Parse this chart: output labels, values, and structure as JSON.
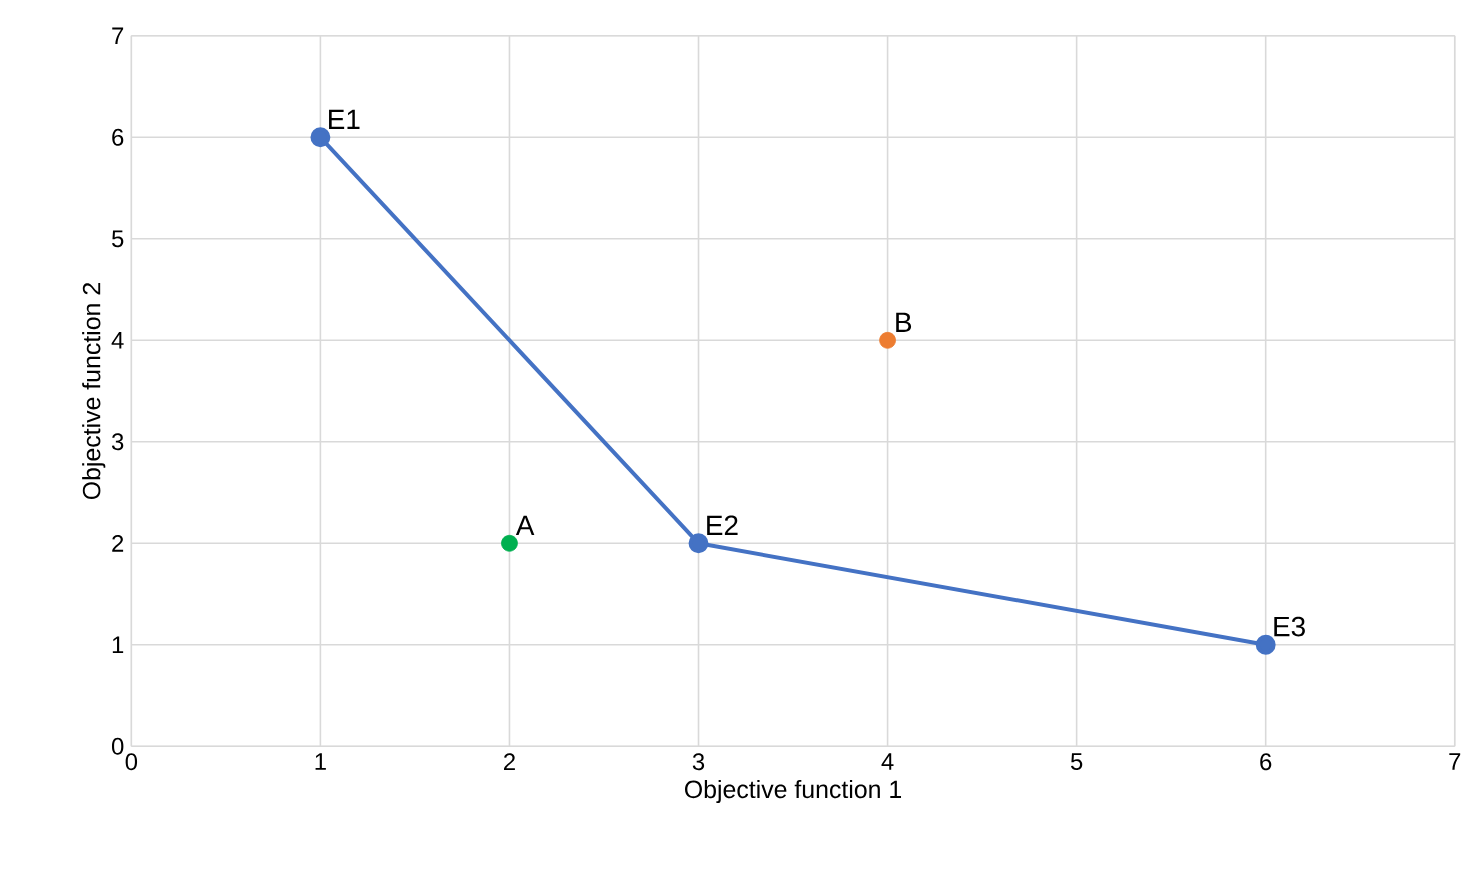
{
  "chart_data": {
    "type": "scatter",
    "xlabel": "Objective function 1",
    "ylabel": "Objective function 2",
    "xlim": [
      0,
      7
    ],
    "ylim": [
      0,
      7
    ],
    "xticks": [
      0,
      1,
      2,
      3,
      4,
      5,
      6,
      7
    ],
    "yticks": [
      0,
      1,
      2,
      3,
      4,
      5,
      6,
      7
    ],
    "grid": true,
    "marker": "circle",
    "series": [
      {
        "type": "line",
        "color": "#4472c4",
        "x": [
          1,
          3,
          6
        ],
        "values": [
          6,
          2,
          1
        ]
      },
      {
        "color": "#00b050",
        "x": [
          2
        ],
        "values": [
          2
        ]
      },
      {
        "color": "#ed7d31",
        "x": [
          4
        ],
        "values": [
          4
        ]
      }
    ],
    "annotations": [
      {
        "text": "E1",
        "x": 1,
        "y": 6
      },
      {
        "text": "E2",
        "x": 3,
        "y": 2
      },
      {
        "text": "E3",
        "x": 6,
        "y": 1
      },
      {
        "text": "A",
        "x": 2,
        "y": 2
      },
      {
        "text": "B",
        "x": 4,
        "y": 4
      }
    ]
  }
}
